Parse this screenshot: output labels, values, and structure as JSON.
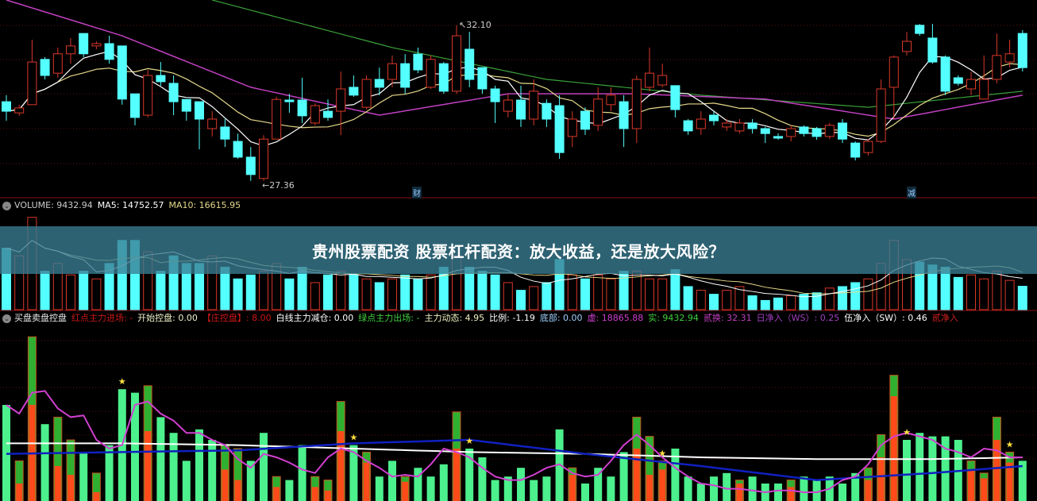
{
  "banner": {
    "title": "贵州股票配资 股票杠杆配资：放大收益，还是放大风险？"
  },
  "colors": {
    "up": "#d9382a",
    "down": "#54ffff",
    "ma5": "#ffffff",
    "ma10": "#e6d98a",
    "ma30": "#c040c0",
    "ma60": "#3aa23a",
    "bar_green": "#4cf08c",
    "bar_red": "#ff4a1a",
    "line_white": "#ffffff",
    "line_blue": "#1020c0",
    "line_magenta": "#d040d0",
    "star": "#ffe040"
  },
  "main_panel": {
    "high_label": "32.10",
    "low_label": "27.36",
    "markers": [
      "财",
      "减"
    ]
  },
  "volume_header": {
    "icon": "circle-chevron-icon",
    "volume": "VOLUME: 9432.94",
    "ma5": "MA5: 14752.57",
    "ma10": "MA10: 16615.95"
  },
  "indicator_header": {
    "icon": "circle-chevron-icon",
    "items": [
      {
        "text": "买盘卖盘控盘",
        "color": "#e8e8e8"
      },
      {
        "text": "红点主力进场: -",
        "color": "#c81818"
      },
      {
        "text": "开始控盘: 0.00",
        "color": "#f0f0c8"
      },
      {
        "text": "【庄控盘】: 8.00",
        "color": "#d01818"
      },
      {
        "text": "白线主力减仓: 0.00",
        "color": "#ffffff"
      },
      {
        "text": "绿点主力出场: -",
        "color": "#40d040"
      },
      {
        "text": "主力动态: 4.95",
        "color": "#f0f0c0"
      },
      {
        "text": "比例: -1.19",
        "color": "#ffffff"
      },
      {
        "text": "底部: 0.00",
        "color": "#a0d0ff"
      },
      {
        "text": "虚: 18865.88",
        "color": "#d040d0"
      },
      {
        "text": "实: 9432.94",
        "color": "#40d040"
      },
      {
        "text": "贰换: 32.31",
        "color": "#c040c0"
      },
      {
        "text": "日净入（WS）: 0.25",
        "color": "#a040c0"
      },
      {
        "text": "伍净入（SW）: 0.46",
        "color": "#ffffff"
      },
      {
        "text": "贰净入",
        "color": "#d02020"
      }
    ]
  },
  "chart_data": [
    {
      "type": "candlestick",
      "ohlc_order": [
        "open",
        "high",
        "low",
        "close"
      ],
      "ohlc": [
        [
          29.77,
          29.97,
          29.19,
          29.48
        ],
        [
          29.43,
          29.68,
          29.34,
          29.58
        ],
        [
          29.68,
          31.66,
          29.68,
          30.98
        ],
        [
          31.06,
          31.13,
          30.45,
          30.57
        ],
        [
          30.64,
          31.42,
          30.5,
          31.23
        ],
        [
          31.23,
          31.71,
          30.93,
          31.47
        ],
        [
          31.85,
          31.85,
          31.13,
          31.23
        ],
        [
          31.47,
          31.61,
          31.37,
          31.54
        ],
        [
          31.54,
          31.78,
          30.93,
          31.06
        ],
        [
          31.47,
          31.47,
          29.68,
          29.85
        ],
        [
          30.01,
          30.01,
          29.05,
          29.29
        ],
        [
          29.36,
          30.74,
          29.29,
          30.57
        ],
        [
          30.57,
          30.98,
          30.26,
          30.38
        ],
        [
          30.33,
          30.57,
          29.36,
          29.77
        ],
        [
          29.84,
          29.84,
          29.19,
          29.48
        ],
        [
          29.77,
          29.77,
          28.32,
          29.24
        ],
        [
          28.95,
          29.48,
          28.71,
          29.24
        ],
        [
          29.0,
          29.24,
          28.39,
          28.63
        ],
        [
          28.56,
          28.8,
          28.03,
          28.08
        ],
        [
          28.08,
          28.39,
          27.36,
          27.55
        ],
        [
          27.43,
          28.75,
          27.36,
          28.63
        ],
        [
          28.63,
          29.92,
          28.63,
          29.84
        ],
        [
          29.82,
          30.01,
          29.43,
          29.77
        ],
        [
          29.82,
          30.5,
          29.12,
          29.34
        ],
        [
          29.12,
          29.72,
          29.05,
          29.65
        ],
        [
          29.48,
          29.84,
          29.19,
          29.29
        ],
        [
          29.48,
          30.69,
          28.75,
          30.16
        ],
        [
          30.21,
          30.57,
          29.92,
          29.97
        ],
        [
          29.6,
          30.57,
          29.53,
          30.45
        ],
        [
          30.45,
          30.81,
          29.97,
          30.21
        ],
        [
          30.45,
          31.18,
          30.21,
          30.93
        ],
        [
          30.93,
          31.22,
          30.01,
          30.21
        ],
        [
          31.22,
          31.42,
          30.64,
          30.74
        ],
        [
          30.21,
          31.18,
          30.16,
          31.06
        ],
        [
          30.93,
          30.98,
          30.01,
          30.09
        ],
        [
          30.09,
          32.1,
          30.01,
          31.78
        ],
        [
          31.37,
          31.9,
          30.21,
          30.45
        ],
        [
          30.81,
          30.81,
          30.01,
          30.16
        ],
        [
          30.16,
          30.26,
          29.12,
          29.77
        ],
        [
          29.48,
          30.01,
          29.29,
          29.82
        ],
        [
          29.82,
          30.26,
          29.0,
          29.24
        ],
        [
          29.24,
          30.45,
          29.05,
          30.09
        ],
        [
          29.72,
          29.84,
          29.0,
          29.24
        ],
        [
          29.65,
          29.97,
          28.03,
          28.22
        ],
        [
          28.71,
          29.48,
          28.39,
          29.24
        ],
        [
          29.48,
          29.6,
          28.76,
          28.93
        ],
        [
          29.05,
          30.21,
          28.88,
          29.85
        ],
        [
          29.68,
          30.21,
          29.48,
          29.97
        ],
        [
          29.77,
          29.97,
          28.39,
          28.95
        ],
        [
          28.95,
          30.57,
          28.51,
          30.45
        ],
        [
          30.21,
          31.42,
          30.09,
          30.64
        ],
        [
          30.28,
          30.93,
          30.21,
          30.57
        ],
        [
          30.26,
          30.26,
          29.29,
          29.53
        ],
        [
          29.19,
          29.24,
          28.76,
          28.88
        ],
        [
          28.95,
          29.48,
          28.76,
          29.24
        ],
        [
          29.36,
          29.48,
          29.05,
          29.19
        ],
        [
          29.0,
          29.24,
          28.88,
          29.12
        ],
        [
          28.88,
          29.24,
          28.8,
          29.12
        ],
        [
          29.12,
          29.24,
          28.8,
          28.95
        ],
        [
          28.95,
          29.0,
          28.51,
          28.8
        ],
        [
          28.71,
          28.8,
          28.61,
          28.66
        ],
        [
          28.71,
          29.05,
          28.56,
          28.95
        ],
        [
          29.0,
          29.05,
          28.71,
          28.8
        ],
        [
          28.95,
          29.0,
          28.61,
          28.71
        ],
        [
          28.71,
          29.12,
          28.63,
          29.05
        ],
        [
          29.12,
          29.24,
          28.51,
          28.63
        ],
        [
          28.51,
          28.56,
          27.98,
          28.08
        ],
        [
          28.22,
          28.63,
          28.13,
          28.56
        ],
        [
          28.56,
          30.45,
          28.51,
          30.16
        ],
        [
          30.21,
          31.18,
          29.24,
          31.13
        ],
        [
          31.3,
          31.9,
          31.18,
          31.61
        ],
        [
          32.1,
          32.14,
          31.78,
          31.85
        ],
        [
          31.71,
          32.14,
          30.93,
          30.98
        ],
        [
          31.13,
          31.18,
          29.97,
          30.09
        ],
        [
          30.5,
          30.57,
          30.26,
          30.33
        ],
        [
          30.16,
          30.69,
          29.97,
          30.45
        ],
        [
          29.85,
          31.18,
          29.85,
          30.45
        ],
        [
          30.45,
          31.85,
          30.33,
          31.18
        ],
        [
          30.98,
          31.66,
          30.81,
          31.23
        ],
        [
          31.85,
          31.95,
          30.69,
          30.81
        ]
      ],
      "ma30": {
        "index": [
          0,
          9,
          19,
          29,
          39,
          49,
          59,
          69,
          79
        ],
        "values": [
          32.87,
          31.78,
          30.21,
          29.36,
          30.01,
          30.01,
          29.85,
          29.24,
          29.97
        ]
      },
      "ma60": {
        "index": [
          16,
          30,
          42,
          54,
          67,
          79
        ],
        "values": [
          32.87,
          31.42,
          30.45,
          29.97,
          29.6,
          30.09
        ]
      },
      "annotations": {
        "high": 32.1,
        "low": 27.36
      }
    },
    {
      "type": "bar",
      "name": "VOLUME",
      "values": [
        24800,
        21700,
        37200,
        15500,
        18600,
        14000,
        15500,
        12400,
        18600,
        27900,
        27900,
        23300,
        15500,
        21700,
        18600,
        18600,
        21700,
        17100,
        12400,
        14000,
        15500,
        18600,
        12400,
        17100,
        10900,
        14000,
        15500,
        14000,
        12400,
        10900,
        12400,
        14000,
        12400,
        14000,
        17100,
        21700,
        17100,
        15500,
        14000,
        10900,
        7800,
        9300,
        10900,
        20200,
        14000,
        12400,
        14000,
        12400,
        15500,
        15500,
        12400,
        12400,
        16100,
        9300,
        7800,
        6200,
        7800,
        9300,
        5600,
        3700,
        4700,
        5600,
        6200,
        6800,
        8700,
        9300,
        10900,
        12400,
        18600,
        27900,
        20200,
        19200,
        18000,
        17100,
        13000,
        14000,
        12400,
        15500,
        11800,
        9432.94
      ],
      "ylim": [
        0,
        40000
      ]
    },
    {
      "type": "bar",
      "name": "买盘卖盘控盘",
      "bars_total_and_red": [
        [
          55,
          0
        ],
        [
          23,
          10
        ],
        [
          94,
          55
        ],
        [
          44,
          0
        ],
        [
          48,
          20
        ],
        [
          35,
          15
        ],
        [
          28,
          0
        ],
        [
          16,
          5
        ],
        [
          32,
          0
        ],
        [
          64,
          0
        ],
        [
          62,
          0
        ],
        [
          66,
          40
        ],
        [
          48,
          0
        ],
        [
          39,
          0
        ],
        [
          23,
          0
        ],
        [
          41,
          0
        ],
        [
          35,
          0
        ],
        [
          32,
          18
        ],
        [
          30,
          12
        ],
        [
          23,
          0
        ],
        [
          39,
          0
        ],
        [
          14,
          8
        ],
        [
          12,
          0
        ],
        [
          32,
          0
        ],
        [
          14,
          8
        ],
        [
          12,
          6
        ],
        [
          57,
          40
        ],
        [
          32,
          0
        ],
        [
          28,
          22
        ],
        [
          14,
          0
        ],
        [
          23,
          0
        ],
        [
          14,
          11
        ],
        [
          19,
          0
        ],
        [
          14,
          0
        ],
        [
          21,
          0
        ],
        [
          51,
          30
        ],
        [
          30,
          0
        ],
        [
          25,
          0
        ],
        [
          12,
          0
        ],
        [
          14,
          0
        ],
        [
          19,
          0
        ],
        [
          12,
          0
        ],
        [
          14,
          0
        ],
        [
          41,
          0
        ],
        [
          19,
          15
        ],
        [
          10,
          0
        ],
        [
          19,
          0
        ],
        [
          14,
          0
        ],
        [
          28,
          0
        ],
        [
          48,
          30
        ],
        [
          37,
          15
        ],
        [
          23,
          18
        ],
        [
          30,
          0
        ],
        [
          14,
          0
        ],
        [
          10,
          0
        ],
        [
          14,
          0
        ],
        [
          16,
          0
        ],
        [
          12,
          10
        ],
        [
          14,
          0
        ],
        [
          10,
          0
        ],
        [
          10,
          0
        ],
        [
          12,
          8
        ],
        [
          14,
          0
        ],
        [
          12,
          0
        ],
        [
          14,
          0
        ],
        [
          10,
          0
        ],
        [
          16,
          0
        ],
        [
          19,
          12
        ],
        [
          38,
          25
        ],
        [
          72,
          60
        ],
        [
          35,
          0
        ],
        [
          39,
          0
        ],
        [
          37,
          0
        ],
        [
          37,
          0
        ],
        [
          35,
          0
        ],
        [
          23,
          18
        ],
        [
          16,
          13
        ],
        [
          48,
          35
        ],
        [
          28,
          22
        ],
        [
          23,
          0
        ]
      ],
      "stars_at": [
        9,
        27,
        36,
        51,
        70,
        78
      ],
      "white_line": {
        "index": [
          0,
          9,
          18,
          27,
          36,
          45,
          54,
          63,
          72,
          79
        ],
        "values": [
          33,
          33,
          32,
          30,
          28,
          27,
          25,
          24,
          24,
          25
        ]
      },
      "blue_line": {
        "index": [
          0,
          9,
          18,
          27,
          36,
          45,
          54,
          63,
          72,
          79
        ],
        "values": [
          27,
          28,
          29,
          33,
          35,
          27,
          20,
          12,
          16,
          20
        ]
      },
      "magenta_line": [
        55,
        50,
        62,
        63,
        53,
        48,
        49,
        35,
        30,
        32,
        55,
        57,
        50,
        46,
        39,
        39,
        35,
        32,
        24,
        19,
        27,
        25,
        22,
        18,
        16,
        25,
        30,
        28,
        23,
        19,
        14,
        15,
        14,
        21,
        30,
        28,
        25,
        19,
        14,
        12,
        12,
        15,
        19,
        21,
        16,
        14,
        15,
        23,
        32,
        38,
        32,
        25,
        19,
        14,
        10,
        9,
        7,
        7,
        6,
        5,
        6,
        6,
        5,
        5,
        7,
        12,
        14,
        21,
        32,
        37,
        39,
        37,
        35,
        30,
        28,
        25,
        30,
        29,
        25,
        25
      ],
      "ylim": [
        0,
        100
      ]
    }
  ]
}
